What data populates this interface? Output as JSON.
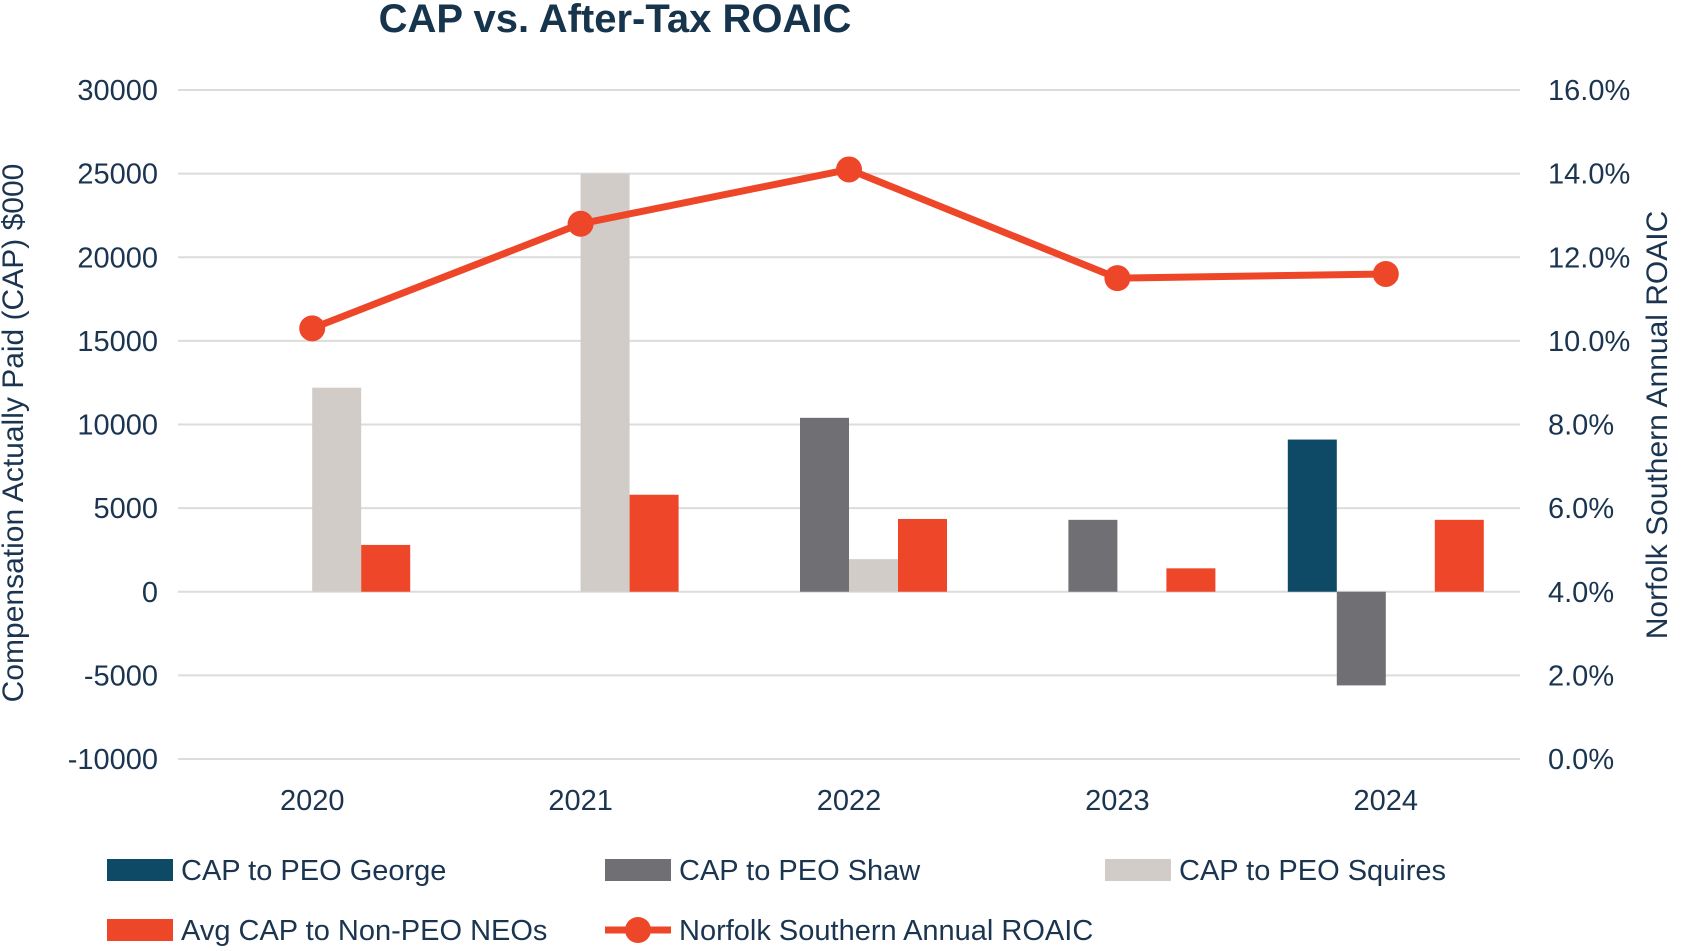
{
  "chart_data": {
    "type": "bar",
    "title": "CAP vs. After-Tax ROAIC",
    "ylabel": "Compensation Actually Paid (CAP) $000",
    "y2label": "Norfolk Southern Annual ROAIC",
    "categories": [
      "2020",
      "2021",
      "2022",
      "2023",
      "2024"
    ],
    "ylim": [
      -10000,
      30000
    ],
    "yticks": [
      "-10000",
      "-5000",
      "0",
      "5000",
      "10000",
      "15000",
      "20000",
      "25000",
      "30000"
    ],
    "y2lim": [
      0.0,
      16.0
    ],
    "y2ticks": [
      "0.0%",
      "2.0%",
      "4.0%",
      "6.0%",
      "8.0%",
      "10.0%",
      "12.0%",
      "14.0%",
      "16.0%"
    ],
    "grid": true,
    "legend_position": "bottom",
    "series": [
      {
        "name": "CAP to PEO George",
        "kind": "bar",
        "color": "#0e4a66",
        "values": [
          null,
          null,
          null,
          null,
          9100
        ]
      },
      {
        "name": "CAP to PEO Shaw",
        "kind": "bar",
        "color": "#707074",
        "values": [
          null,
          null,
          10400,
          4300,
          -5600
        ]
      },
      {
        "name": "CAP to PEO Squires",
        "kind": "bar",
        "color": "#d1ccc8",
        "values": [
          12200,
          25000,
          1950,
          null,
          null
        ]
      },
      {
        "name": "Avg CAP to Non-PEO NEOs",
        "kind": "bar",
        "color": "#ee4628",
        "values": [
          2800,
          5800,
          4350,
          1400,
          4300
        ]
      },
      {
        "name": "Norfolk Southern Annual ROAIC",
        "kind": "line",
        "axis": "y2",
        "color": "#ee4628",
        "values": [
          10.3,
          12.8,
          14.1,
          11.5,
          11.6
        ]
      }
    ]
  }
}
